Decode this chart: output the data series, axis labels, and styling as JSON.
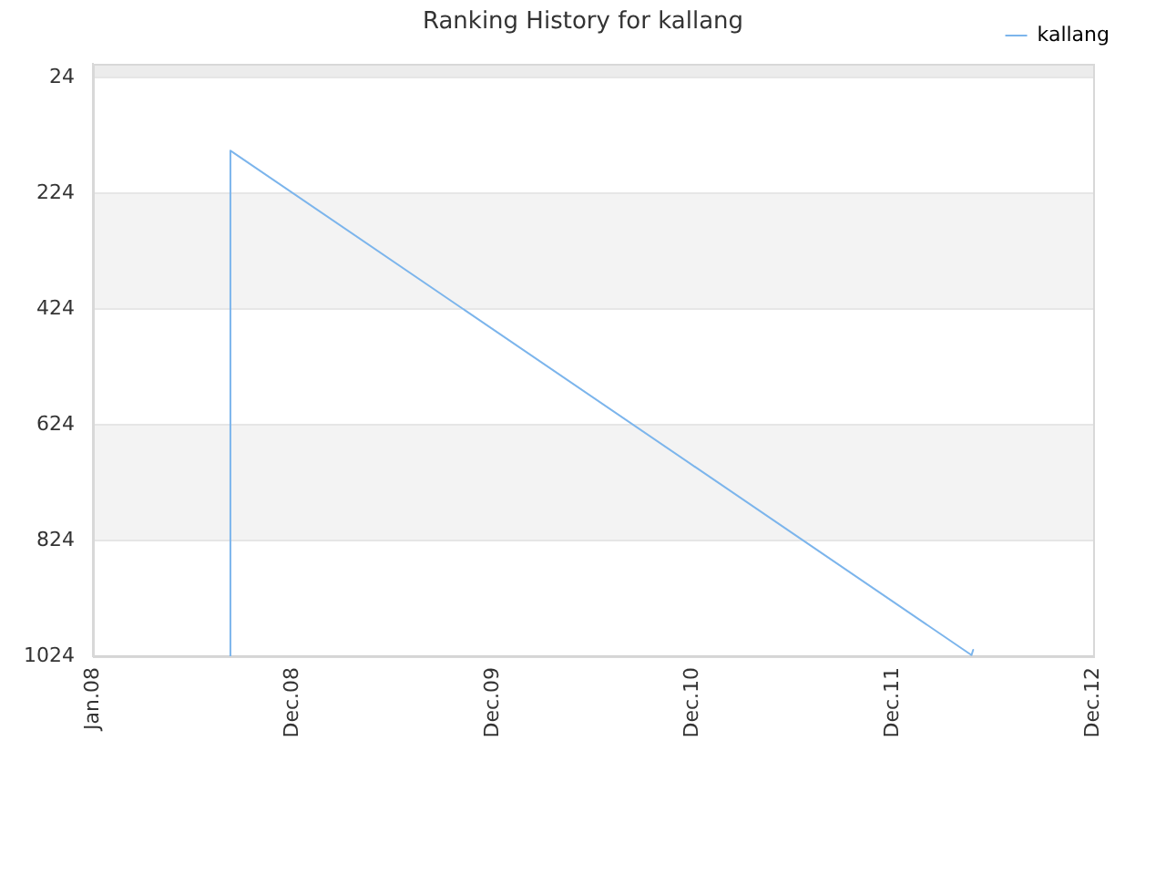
{
  "chart_data": {
    "type": "line",
    "title": "Ranking History for kallang",
    "x": [
      "2008-09-08",
      "2008-09-08",
      "2012-05-23",
      "2012-05-26"
    ],
    "series": [
      {
        "name": "kallang",
        "color": "#7cb5ec",
        "values": [
          1024,
          150,
          1022,
          1013
        ]
      }
    ],
    "xlim": [
      "2008-01-01",
      "2012-12-31"
    ],
    "xticks": [
      {
        "value": "2008-01-01",
        "label": "Jan.08"
      },
      {
        "value": "2008-12-31",
        "label": "Dec.08"
      },
      {
        "value": "2009-12-31",
        "label": "Dec.09"
      },
      {
        "value": "2010-12-31",
        "label": "Dec.10"
      },
      {
        "value": "2011-12-31",
        "label": "Dec.11"
      },
      {
        "value": "2012-12-31",
        "label": "Dec.12"
      }
    ],
    "ylim": [
      1024,
      0
    ],
    "yticks": [
      24,
      224,
      424,
      624,
      824,
      1024
    ],
    "bands": [
      {
        "axis": "y",
        "from": 0,
        "to": 24,
        "color": "#ececec"
      },
      {
        "axis": "y",
        "from": 224,
        "to": 424,
        "color": "#f3f3f3"
      },
      {
        "axis": "y",
        "from": 624,
        "to": 824,
        "color": "#f3f3f3"
      }
    ],
    "grid": "y",
    "legend": "top right",
    "marker": "none",
    "line_style": "solid"
  }
}
